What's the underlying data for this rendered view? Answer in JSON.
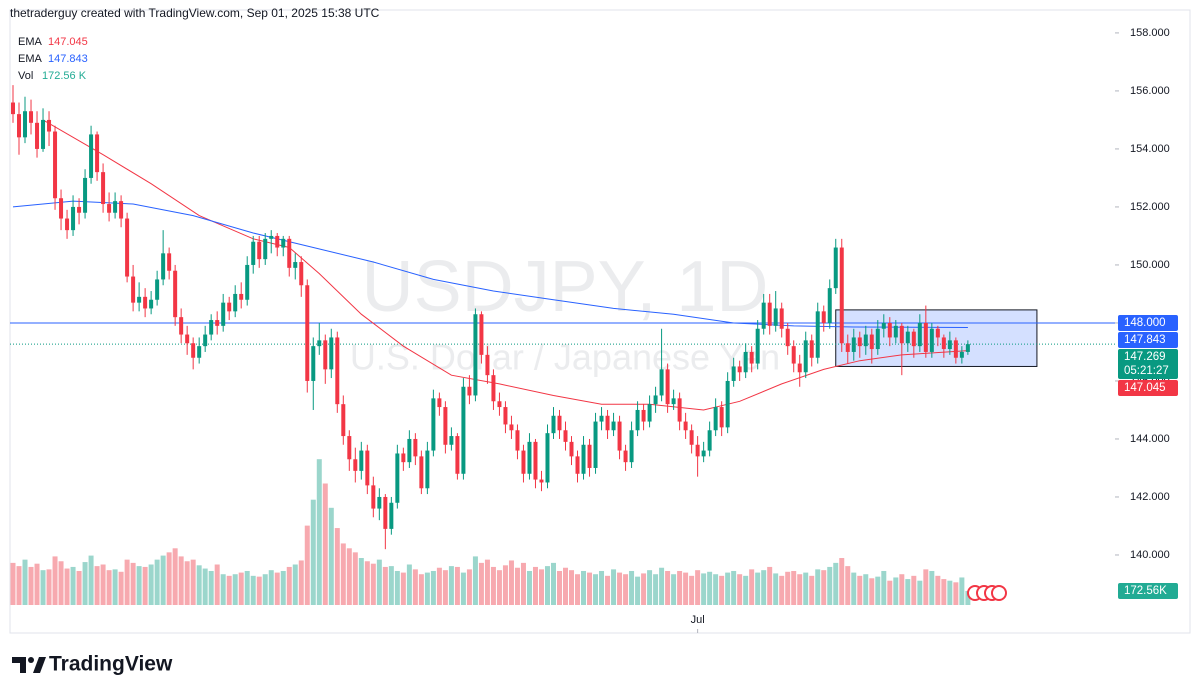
{
  "chart_data": {
    "type": "candlestick",
    "header": "thetraderguy created with TradingView.com, Sep 01, 2025 15:38 UTC",
    "watermark_symbol": "USDJPY, 1D",
    "watermark_name": "U.S. Dollar / Japanese Yen",
    "brand": "TradingView",
    "up_color": "#089981",
    "down_color": "#f23645",
    "volume_up_color": "#9bd6cc",
    "volume_down_color": "#f7a9af",
    "ylim": [
      137.31,
      158.79
    ],
    "xlim": [
      -0.5,
      183.5
    ],
    "yticks": [
      {
        "value": 140,
        "label": "140.000"
      },
      {
        "value": 142,
        "label": "142.000"
      },
      {
        "value": 144,
        "label": "144.000"
      },
      {
        "value": 146,
        "label": "146.000"
      },
      {
        "value": 148,
        "label": "148.000"
      },
      {
        "value": 150,
        "label": "150.000"
      },
      {
        "value": 152,
        "label": "152.000"
      },
      {
        "value": 154,
        "label": "154.000"
      },
      {
        "value": 156,
        "label": "156.000"
      },
      {
        "value": 158,
        "label": "158.000"
      }
    ],
    "xticks": [
      {
        "value": 114,
        "label": "Jul"
      }
    ],
    "ohlc": [
      [
        155.6,
        156.2,
        154.9,
        155.2
      ],
      [
        155.2,
        155.6,
        153.8,
        154.4
      ],
      [
        154.4,
        155.8,
        154.2,
        155.3
      ],
      [
        155.3,
        155.7,
        154.5,
        154.9
      ],
      [
        154.9,
        155.3,
        153.7,
        154.0
      ],
      [
        154.0,
        155.4,
        153.9,
        155.0
      ],
      [
        155.0,
        155.3,
        154.1,
        154.6
      ],
      [
        154.6,
        154.8,
        151.9,
        152.3
      ],
      [
        152.3,
        152.6,
        151.2,
        151.6
      ],
      [
        151.6,
        151.9,
        150.9,
        151.2
      ],
      [
        151.2,
        152.4,
        151.0,
        152.0
      ],
      [
        152.0,
        152.3,
        151.4,
        151.8
      ],
      [
        151.8,
        153.3,
        151.6,
        153.0
      ],
      [
        153.0,
        154.8,
        152.8,
        154.5
      ],
      [
        154.5,
        154.6,
        152.9,
        153.2
      ],
      [
        153.2,
        153.5,
        151.8,
        152.1
      ],
      [
        152.1,
        152.5,
        151.5,
        151.8
      ],
      [
        151.8,
        152.5,
        151.6,
        152.2
      ],
      [
        152.2,
        152.4,
        151.3,
        151.6
      ],
      [
        151.6,
        151.8,
        149.4,
        149.6
      ],
      [
        149.6,
        150.0,
        148.4,
        148.7
      ],
      [
        148.7,
        149.4,
        148.4,
        148.9
      ],
      [
        148.9,
        149.2,
        148.2,
        148.5
      ],
      [
        148.5,
        149.1,
        148.3,
        148.8
      ],
      [
        148.8,
        149.8,
        148.6,
        149.5
      ],
      [
        149.5,
        151.2,
        149.3,
        150.4
      ],
      [
        150.4,
        150.6,
        149.5,
        149.8
      ],
      [
        149.8,
        150.0,
        147.9,
        148.2
      ],
      [
        148.2,
        148.5,
        147.3,
        147.6
      ],
      [
        147.6,
        147.9,
        146.9,
        147.3
      ],
      [
        147.3,
        147.5,
        146.4,
        146.8
      ],
      [
        146.8,
        147.5,
        146.6,
        147.2
      ],
      [
        147.2,
        147.9,
        147.0,
        147.6
      ],
      [
        147.6,
        148.3,
        147.4,
        148.1
      ],
      [
        148.1,
        148.4,
        147.6,
        147.9
      ],
      [
        147.9,
        149.0,
        147.7,
        148.7
      ],
      [
        148.7,
        148.9,
        148.1,
        148.4
      ],
      [
        148.4,
        149.3,
        148.2,
        149.0
      ],
      [
        149.0,
        149.4,
        148.5,
        148.8
      ],
      [
        148.8,
        150.3,
        148.6,
        150.0
      ],
      [
        150.0,
        151.0,
        149.7,
        150.8
      ],
      [
        150.8,
        151.0,
        149.9,
        150.2
      ],
      [
        150.2,
        151.1,
        150.0,
        150.9
      ],
      [
        150.9,
        151.2,
        150.4,
        151.0
      ],
      [
        151.0,
        151.1,
        150.3,
        150.6
      ],
      [
        150.6,
        151.0,
        150.3,
        150.9
      ],
      [
        150.9,
        151.0,
        149.6,
        149.9
      ],
      [
        149.9,
        150.4,
        149.5,
        150.1
      ],
      [
        150.1,
        150.3,
        148.9,
        149.3
      ],
      [
        149.3,
        149.5,
        145.6,
        146.0
      ],
      [
        146.0,
        147.5,
        145.0,
        147.2
      ],
      [
        147.2,
        148.0,
        146.9,
        147.4
      ],
      [
        147.4,
        147.6,
        145.9,
        146.4
      ],
      [
        146.4,
        147.8,
        146.1,
        147.5
      ],
      [
        147.5,
        147.7,
        144.9,
        145.2
      ],
      [
        145.2,
        145.5,
        143.8,
        144.1
      ],
      [
        144.1,
        144.3,
        142.9,
        143.3
      ],
      [
        143.3,
        143.7,
        142.5,
        142.9
      ],
      [
        142.9,
        143.9,
        142.6,
        143.6
      ],
      [
        143.6,
        143.8,
        142.1,
        142.4
      ],
      [
        142.4,
        142.7,
        141.3,
        141.6
      ],
      [
        141.6,
        142.3,
        141.2,
        142.0
      ],
      [
        142.0,
        142.1,
        140.2,
        140.9
      ],
      [
        140.9,
        142.0,
        140.7,
        141.8
      ],
      [
        141.8,
        143.8,
        141.6,
        143.5
      ],
      [
        143.5,
        143.7,
        142.9,
        143.2
      ],
      [
        143.2,
        144.3,
        143.0,
        144.0
      ],
      [
        144.0,
        144.2,
        143.1,
        143.4
      ],
      [
        143.4,
        143.6,
        142.1,
        142.3
      ],
      [
        142.3,
        143.9,
        142.1,
        143.6
      ],
      [
        143.6,
        145.7,
        143.4,
        145.4
      ],
      [
        145.4,
        145.6,
        144.8,
        145.1
      ],
      [
        145.1,
        145.3,
        143.5,
        143.8
      ],
      [
        143.8,
        144.4,
        143.6,
        144.1
      ],
      [
        144.1,
        144.2,
        142.6,
        142.8
      ],
      [
        142.8,
        146.1,
        142.6,
        145.8
      ],
      [
        145.8,
        146.2,
        145.2,
        145.5
      ],
      [
        145.5,
        148.5,
        145.3,
        148.3
      ],
      [
        148.3,
        148.4,
        146.6,
        146.9
      ],
      [
        146.9,
        147.2,
        145.9,
        146.2
      ],
      [
        146.2,
        146.4,
        145.0,
        145.3
      ],
      [
        145.3,
        145.6,
        144.8,
        145.1
      ],
      [
        145.1,
        145.3,
        144.2,
        144.5
      ],
      [
        144.5,
        144.8,
        144.0,
        144.3
      ],
      [
        144.3,
        144.5,
        143.3,
        143.6
      ],
      [
        143.6,
        143.8,
        142.5,
        142.8
      ],
      [
        142.8,
        144.2,
        142.6,
        143.9
      ],
      [
        143.9,
        144.0,
        142.3,
        142.6
      ],
      [
        142.6,
        142.9,
        142.2,
        142.5
      ],
      [
        142.5,
        144.5,
        142.3,
        144.2
      ],
      [
        144.2,
        145.1,
        144.0,
        144.8
      ],
      [
        144.8,
        145.0,
        144.0,
        144.3
      ],
      [
        144.3,
        144.6,
        143.6,
        143.9
      ],
      [
        143.9,
        144.1,
        143.1,
        143.4
      ],
      [
        143.4,
        143.6,
        142.5,
        142.8
      ],
      [
        142.8,
        144.1,
        142.6,
        143.8
      ],
      [
        143.8,
        144.0,
        142.7,
        143.0
      ],
      [
        143.0,
        144.9,
        142.8,
        144.6
      ],
      [
        144.6,
        145.1,
        144.3,
        144.8
      ],
      [
        144.8,
        145.0,
        144.0,
        144.3
      ],
      [
        144.3,
        144.9,
        144.1,
        144.6
      ],
      [
        144.6,
        144.8,
        143.3,
        143.6
      ],
      [
        143.6,
        143.8,
        142.9,
        143.2
      ],
      [
        143.2,
        144.6,
        143.0,
        144.3
      ],
      [
        144.3,
        145.3,
        144.1,
        145.0
      ],
      [
        145.0,
        145.2,
        144.3,
        144.6
      ],
      [
        144.6,
        145.5,
        144.4,
        145.2
      ],
      [
        145.2,
        145.8,
        144.9,
        145.5
      ],
      [
        145.5,
        147.8,
        145.3,
        146.4
      ],
      [
        146.4,
        146.6,
        144.9,
        145.2
      ],
      [
        145.2,
        145.7,
        145.0,
        145.4
      ],
      [
        145.4,
        145.6,
        144.3,
        144.6
      ],
      [
        144.6,
        144.9,
        144.0,
        144.3
      ],
      [
        144.3,
        144.5,
        143.5,
        143.8
      ],
      [
        143.8,
        144.1,
        142.7,
        143.4
      ],
      [
        143.4,
        143.9,
        143.2,
        143.6
      ],
      [
        143.6,
        144.6,
        143.4,
        144.3
      ],
      [
        144.3,
        145.4,
        144.1,
        145.1
      ],
      [
        145.1,
        145.3,
        144.1,
        144.4
      ],
      [
        144.4,
        146.3,
        144.2,
        146.0
      ],
      [
        146.0,
        146.8,
        145.8,
        146.5
      ],
      [
        146.5,
        146.7,
        146.0,
        146.3
      ],
      [
        146.3,
        147.3,
        146.1,
        147.0
      ],
      [
        147.0,
        147.2,
        146.3,
        146.6
      ],
      [
        146.6,
        148.1,
        146.4,
        147.8
      ],
      [
        147.8,
        149.0,
        147.6,
        148.7
      ],
      [
        148.7,
        149.0,
        147.6,
        147.9
      ],
      [
        147.9,
        149.1,
        147.7,
        148.5
      ],
      [
        148.5,
        148.7,
        147.5,
        147.8
      ],
      [
        147.8,
        148.0,
        146.9,
        147.2
      ],
      [
        147.2,
        147.4,
        146.3,
        146.6
      ],
      [
        146.6,
        146.9,
        145.8,
        146.3
      ],
      [
        146.3,
        147.7,
        146.1,
        147.4
      ],
      [
        147.4,
        147.6,
        146.5,
        146.8
      ],
      [
        146.8,
        148.7,
        146.6,
        148.4
      ],
      [
        148.4,
        148.6,
        147.7,
        148.0
      ],
      [
        148.0,
        149.5,
        147.8,
        149.2
      ],
      [
        149.2,
        150.9,
        149.0,
        150.6
      ],
      [
        150.6,
        150.9,
        147.0,
        147.3
      ],
      [
        147.3,
        147.6,
        146.6,
        147.0
      ],
      [
        147.0,
        147.8,
        146.7,
        147.5
      ],
      [
        147.5,
        147.7,
        146.8,
        147.2
      ],
      [
        147.2,
        147.9,
        146.9,
        147.6
      ],
      [
        147.6,
        147.8,
        146.6,
        147.1
      ],
      [
        147.1,
        148.1,
        146.9,
        147.8
      ],
      [
        147.8,
        148.3,
        147.5,
        148.0
      ],
      [
        148.0,
        148.2,
        147.2,
        147.5
      ],
      [
        147.5,
        148.1,
        147.3,
        147.9
      ],
      [
        147.9,
        148.0,
        146.2,
        147.3
      ],
      [
        147.3,
        147.9,
        147.0,
        147.7
      ],
      [
        147.7,
        147.8,
        146.8,
        147.2
      ],
      [
        147.2,
        148.3,
        147.0,
        148.0
      ],
      [
        148.0,
        148.6,
        146.8,
        147.0
      ],
      [
        147.0,
        148.0,
        146.8,
        147.8
      ],
      [
        147.8,
        147.9,
        147.2,
        147.5
      ],
      [
        147.5,
        147.6,
        146.8,
        147.1
      ],
      [
        147.1,
        147.7,
        146.9,
        147.4
      ],
      [
        147.4,
        147.5,
        146.6,
        146.8
      ],
      [
        146.8,
        147.2,
        146.6,
        147.0
      ],
      [
        147.0,
        147.4,
        146.9,
        147.269
      ]
    ],
    "volume": [
      520,
      480,
      560,
      470,
      510,
      430,
      440,
      600,
      540,
      450,
      470,
      420,
      530,
      610,
      480,
      500,
      430,
      440,
      410,
      560,
      520,
      480,
      470,
      500,
      560,
      610,
      650,
      700,
      600,
      540,
      560,
      490,
      450,
      420,
      500,
      380,
      360,
      380,
      400,
      420,
      360,
      350,
      380,
      430,
      400,
      420,
      470,
      500,
      550,
      980,
      1300,
      1800,
      1500,
      1200,
      950,
      760,
      700,
      650,
      580,
      540,
      510,
      560,
      470,
      480,
      420,
      400,
      500,
      440,
      380,
      400,
      420,
      460,
      430,
      480,
      470,
      400,
      440,
      600,
      520,
      560,
      470,
      430,
      490,
      550,
      460,
      520,
      420,
      470,
      440,
      480,
      520,
      420,
      460,
      430,
      380,
      420,
      400,
      380,
      420,
      360,
      440,
      400,
      380,
      420,
      350,
      390,
      430,
      380,
      460,
      420,
      380,
      420,
      400,
      360,
      430,
      390,
      410,
      380,
      360,
      400,
      420,
      380,
      360,
      440,
      400,
      430,
      470,
      390,
      360,
      410,
      420,
      380,
      400,
      360,
      440,
      430,
      470,
      520,
      580,
      480,
      400,
      360,
      380,
      330,
      350,
      420,
      300,
      340,
      380,
      320,
      360,
      300,
      440,
      420,
      360,
      320,
      300,
      280,
      340,
      172.56
    ],
    "series": [
      {
        "name": "EMA",
        "color": "#f23645",
        "legend_value": 147.045,
        "x": [
          5,
          15,
          23,
          31,
          40,
          46,
          51,
          58,
          65,
          73,
          81,
          90,
          98,
          106,
          115,
          121,
          128,
          135,
          141,
          148,
          159
        ],
        "values": [
          155.0,
          153.8,
          152.8,
          151.7,
          150.9,
          150.6,
          149.7,
          148.3,
          147.2,
          146.2,
          145.9,
          145.5,
          145.2,
          145.2,
          145.0,
          145.3,
          145.9,
          146.4,
          146.7,
          146.9,
          147.045
        ]
      },
      {
        "name": "EMA",
        "color": "#2962ff",
        "legend_value": 147.843,
        "x": [
          0,
          10,
          20,
          30,
          40,
          50,
          60,
          70,
          80,
          90,
          100,
          110,
          120,
          130,
          140,
          150,
          159
        ],
        "values": [
          152.0,
          152.2,
          152.1,
          151.7,
          151.1,
          150.6,
          150.1,
          149.5,
          149.1,
          148.8,
          148.5,
          148.3,
          148.0,
          147.9,
          147.86,
          147.85,
          147.843
        ]
      }
    ],
    "volume_legend": {
      "name": "Vol",
      "value": 172.56,
      "label": "172.56 K"
    },
    "volume_tag": {
      "value": 172.56,
      "label": "172.56K"
    },
    "horizontal_line": {
      "value": 148.0,
      "color": "#2962ff"
    },
    "rectangle": {
      "x": [
        137,
        170.5
      ],
      "y": [
        146.5,
        148.45
      ],
      "color": "#2962ff"
    },
    "price_tags": [
      {
        "value": 148.0,
        "label": "148.000",
        "color": "#2962ff"
      },
      {
        "value": 147.843,
        "label": "147.843",
        "color": "#2962ff"
      },
      {
        "value": 147.269,
        "label": "147.269",
        "countdown": "05:21:27",
        "color": "#089981"
      },
      {
        "value": 147.045,
        "label": "147.045",
        "color": "#f23645"
      }
    ]
  }
}
